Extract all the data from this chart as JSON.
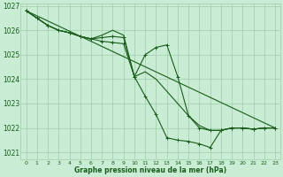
{
  "background_color": "#c8ecd4",
  "grid_color": "#a0ccaa",
  "line_color": "#1a5c1a",
  "xlabel": "Graphe pression niveau de la mer (hPa)",
  "xlabel_color": "#1a5c1a",
  "xlim": [
    -0.5,
    23.5
  ],
  "ylim": [
    1020.7,
    1027.1
  ],
  "yticks": [
    1021,
    1022,
    1023,
    1024,
    1025,
    1026,
    1027
  ],
  "xticks": [
    0,
    1,
    2,
    3,
    4,
    5,
    6,
    7,
    8,
    9,
    10,
    11,
    12,
    13,
    14,
    15,
    16,
    17,
    18,
    19,
    20,
    21,
    22,
    23
  ],
  "line1_x": [
    0,
    1,
    2,
    3,
    4,
    5,
    6,
    7,
    8,
    9,
    10,
    11,
    12,
    13,
    14,
    15,
    16,
    17,
    18,
    19,
    20,
    21,
    22,
    23
  ],
  "line1_y": [
    1026.8,
    1026.5,
    1026.2,
    1026.0,
    1025.9,
    1025.75,
    1025.65,
    1025.55,
    1025.5,
    1025.45,
    1024.1,
    1023.3,
    1022.55,
    1021.6,
    1021.5,
    1021.45,
    1021.35,
    1021.2,
    1021.9,
    1022.0,
    1022.0,
    1021.95,
    1022.0,
    1022.0
  ],
  "line2_x": [
    0,
    1,
    2,
    3,
    4,
    5,
    6,
    7,
    8,
    9,
    10,
    11,
    12,
    13,
    14,
    15,
    16,
    17,
    18,
    19,
    20,
    21,
    22,
    23
  ],
  "line2_y": [
    1026.8,
    1026.5,
    1026.2,
    1026.0,
    1025.9,
    1025.75,
    1025.65,
    1025.8,
    1026.0,
    1025.8,
    1024.1,
    1024.3,
    1024.0,
    1023.5,
    1023.0,
    1022.5,
    1022.1,
    1021.9,
    1021.9,
    1022.0,
    1022.0,
    1021.95,
    1022.0,
    1022.0
  ],
  "line3_x": [
    0,
    1,
    2,
    3,
    4,
    5,
    6,
    7,
    8,
    9,
    10,
    11,
    12,
    13,
    14,
    15,
    16,
    17,
    18,
    19,
    20,
    21,
    22,
    23
  ],
  "line3_y": [
    1026.8,
    1026.5,
    1026.2,
    1026.0,
    1025.9,
    1025.75,
    1025.65,
    1025.7,
    1025.75,
    1025.7,
    1024.1,
    1025.0,
    1025.3,
    1025.4,
    1024.1,
    1022.5,
    1022.0,
    1021.9,
    1021.9,
    1022.0,
    1022.0,
    1021.95,
    1022.0,
    1022.0
  ],
  "line4_x": [
    0,
    23
  ],
  "line4_y": [
    1026.8,
    1022.0
  ]
}
